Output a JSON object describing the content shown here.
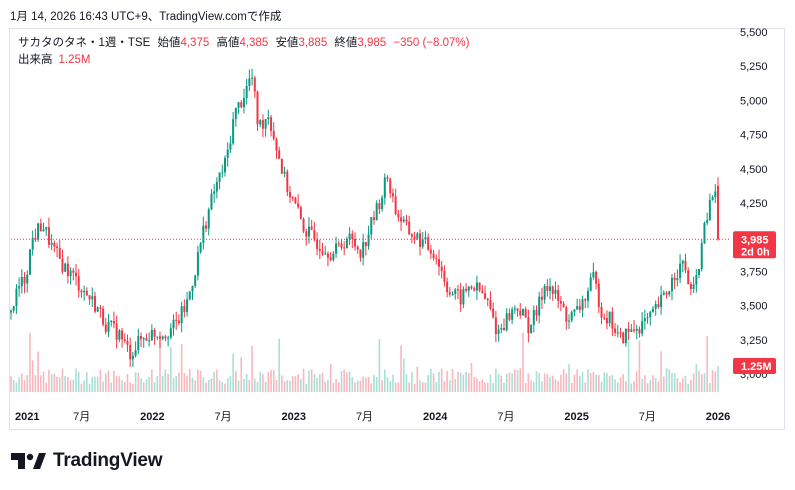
{
  "caption": "1月 14, 2026 16:43 UTC+9、TradingView.comで作成",
  "legend": {
    "symbol": "サカタのタネ・1週・TSE",
    "open_label": "始値",
    "open_value": "4,375",
    "high_label": "高値",
    "high_value": "4,385",
    "low_label": "安値",
    "low_value": "3,885",
    "close_label": "終値",
    "close_value": "3,985",
    "change": "−350 (−8.07%)",
    "volume_label": "出来高",
    "volume_value": "1.25M"
  },
  "badges": {
    "price": "3,985",
    "countdown": "2d 0h",
    "volume": "1.25M"
  },
  "brand": {
    "name": "TradingView"
  },
  "colors": {
    "up": "#089981",
    "down": "#f23645",
    "grid": "#f0f3fa",
    "text": "#131722"
  },
  "chart_data": {
    "type": "candlestick",
    "interval": "1週",
    "x_range": [
      "2021-01",
      "2026-01"
    ],
    "x_ticks": [
      {
        "label": "2021",
        "bold": true,
        "t": 2021.0
      },
      {
        "label": "7月",
        "bold": false,
        "t": 2021.5
      },
      {
        "label": "2022",
        "bold": true,
        "t": 2022.0
      },
      {
        "label": "7月",
        "bold": false,
        "t": 2022.5
      },
      {
        "label": "2023",
        "bold": true,
        "t": 2023.0
      },
      {
        "label": "7月",
        "bold": false,
        "t": 2023.5
      },
      {
        "label": "2024",
        "bold": true,
        "t": 2024.0
      },
      {
        "label": "7月",
        "bold": false,
        "t": 2024.5
      },
      {
        "label": "2025",
        "bold": true,
        "t": 2025.0
      },
      {
        "label": "7月",
        "bold": false,
        "t": 2025.5
      },
      {
        "label": "2026",
        "bold": true,
        "t": 2026.0
      }
    ],
    "y_ticks": [
      "5,500",
      "5,250",
      "5,000",
      "4,750",
      "4,500",
      "4,250",
      "3,750",
      "3,500",
      "3,250",
      "3,000"
    ],
    "y_range": [
      2800,
      5550
    ],
    "grid": false,
    "last_close": 3985,
    "price_path": [
      [
        2021.0,
        3450
      ],
      [
        2021.05,
        3620
      ],
      [
        2021.1,
        3700
      ],
      [
        2021.15,
        3980
      ],
      [
        2021.22,
        4100
      ],
      [
        2021.3,
        3900
      ],
      [
        2021.38,
        3780
      ],
      [
        2021.45,
        3700
      ],
      [
        2021.52,
        3600
      ],
      [
        2021.6,
        3500
      ],
      [
        2021.68,
        3350
      ],
      [
        2021.76,
        3300
      ],
      [
        2021.84,
        3150
      ],
      [
        2021.92,
        3250
      ],
      [
        2022.0,
        3300
      ],
      [
        2022.08,
        3300
      ],
      [
        2022.16,
        3350
      ],
      [
        2022.24,
        3500
      ],
      [
        2022.3,
        3750
      ],
      [
        2022.36,
        4050
      ],
      [
        2022.44,
        4350
      ],
      [
        2022.52,
        4550
      ],
      [
        2022.58,
        4900
      ],
      [
        2022.63,
        5000
      ],
      [
        2022.67,
        5100
      ],
      [
        2022.7,
        5200
      ],
      [
        2022.75,
        4800
      ],
      [
        2022.82,
        4900
      ],
      [
        2022.88,
        4650
      ],
      [
        2022.94,
        4400
      ],
      [
        2023.0,
        4250
      ],
      [
        2023.08,
        4050
      ],
      [
        2023.18,
        3950
      ],
      [
        2023.28,
        3880
      ],
      [
        2023.38,
        4000
      ],
      [
        2023.48,
        3900
      ],
      [
        2023.55,
        4100
      ],
      [
        2023.62,
        4300
      ],
      [
        2023.66,
        4450
      ],
      [
        2023.72,
        4200
      ],
      [
        2023.8,
        4050
      ],
      [
        2023.9,
        3970
      ],
      [
        2024.0,
        3880
      ],
      [
        2024.1,
        3600
      ],
      [
        2024.18,
        3550
      ],
      [
        2024.25,
        3650
      ],
      [
        2024.32,
        3600
      ],
      [
        2024.38,
        3500
      ],
      [
        2024.44,
        3300
      ],
      [
        2024.5,
        3400
      ],
      [
        2024.58,
        3500
      ],
      [
        2024.66,
        3350
      ],
      [
        2024.72,
        3450
      ],
      [
        2024.78,
        3680
      ],
      [
        2024.86,
        3550
      ],
      [
        2024.94,
        3400
      ],
      [
        2025.0,
        3450
      ],
      [
        2025.08,
        3600
      ],
      [
        2025.12,
        3700
      ],
      [
        2025.18,
        3450
      ],
      [
        2025.24,
        3400
      ],
      [
        2025.3,
        3250
      ],
      [
        2025.36,
        3300
      ],
      [
        2025.44,
        3350
      ],
      [
        2025.52,
        3400
      ],
      [
        2025.58,
        3500
      ],
      [
        2025.64,
        3600
      ],
      [
        2025.7,
        3750
      ],
      [
        2025.76,
        3800
      ],
      [
        2025.82,
        3550
      ],
      [
        2025.88,
        3900
      ],
      [
        2025.92,
        4150
      ],
      [
        2025.95,
        4250
      ],
      [
        2025.98,
        4375
      ],
      [
        2026.0,
        3985
      ]
    ],
    "volume_series_note": "weekly volume bars at bottom, last bar 1.25M"
  }
}
